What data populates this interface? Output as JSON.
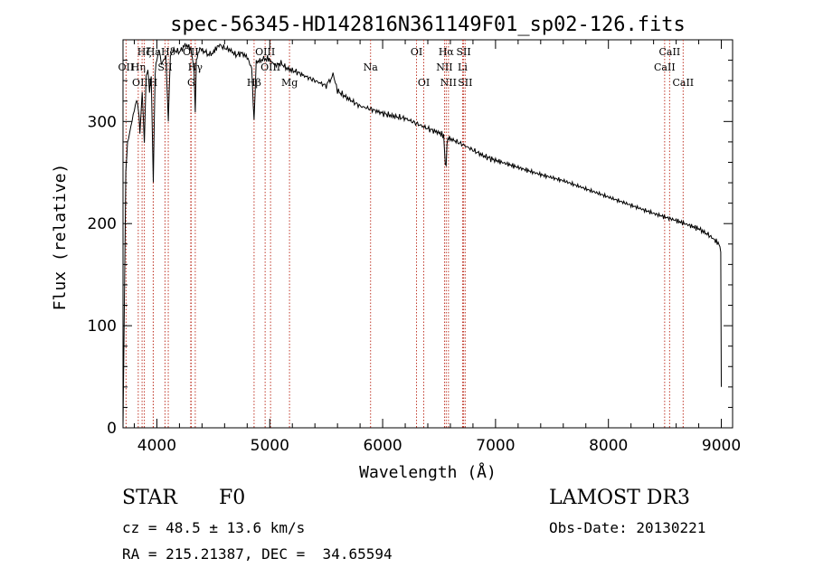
{
  "chart_data": {
    "type": "line",
    "title": "spec-56345-HD142816N361149F01_sp02-126.fits",
    "xlabel": "Wavelength (Å)",
    "ylabel": "Flux (relative)",
    "xlim": [
      3700,
      9100
    ],
    "ylim": [
      0,
      380
    ],
    "x_ticks": [
      4000,
      5000,
      6000,
      7000,
      8000,
      9000
    ],
    "y_ticks": [
      0,
      100,
      200,
      300
    ],
    "grid": false,
    "series": [
      {
        "name": "spectrum",
        "x": [
          3700,
          3712,
          3725,
          3740,
          3760,
          3780,
          3800,
          3820,
          3835,
          3850,
          3870,
          3889,
          3905,
          3920,
          3935,
          3950,
          3968,
          3985,
          4000,
          4020,
          4040,
          4060,
          4080,
          4101,
          4120,
          4150,
          4200,
          4250,
          4300,
          4330,
          4340,
          4350,
          4380,
          4420,
          4480,
          4550,
          4600,
          4650,
          4700,
          4750,
          4800,
          4840,
          4861,
          4880,
          4920,
          4980,
          5050,
          5100,
          5150,
          5200,
          5250,
          5300,
          5400,
          5500,
          5560,
          5580,
          5600,
          5700,
          5800,
          5900,
          6000,
          6100,
          6200,
          6300,
          6400,
          6500,
          6540,
          6555,
          6563,
          6570,
          6585,
          6600,
          6700,
          6800,
          6900,
          7000,
          7200,
          7400,
          7600,
          7800,
          8000,
          8200,
          8400,
          8600,
          8800,
          8900,
          8980,
          8995,
          9000
        ],
        "values": [
          0,
          120,
          250,
          280,
          290,
          300,
          310,
          320,
          315,
          290,
          330,
          280,
          345,
          350,
          330,
          345,
          240,
          350,
          360,
          370,
          355,
          360,
          365,
          300,
          365,
          370,
          368,
          375,
          372,
          350,
          310,
          360,
          372,
          368,
          365,
          375,
          372,
          370,
          365,
          367,
          363,
          352,
          300,
          358,
          360,
          362,
          355,
          357,
          352,
          350,
          348,
          345,
          340,
          335,
          345,
          338,
          330,
          322,
          315,
          312,
          308,
          305,
          303,
          298,
          293,
          289,
          286,
          260,
          255,
          280,
          284,
          283,
          278,
          272,
          266,
          262,
          255,
          248,
          242,
          234,
          226,
          218,
          210,
          203,
          195,
          188,
          180,
          172,
          40
        ]
      }
    ],
    "lines": [
      {
        "label": "Hζ",
        "x": 3889,
        "row": 0
      },
      {
        "label": "Hε",
        "x": 3968,
        "row": 0
      },
      {
        "label": "Hδ",
        "x": 4101,
        "row": 0
      },
      {
        "label": "OII",
        "x": 4300,
        "row": 0
      },
      {
        "label": "OIII",
        "x": 4959,
        "row": 0
      },
      {
        "label": "OI",
        "x": 6300,
        "row": 0
      },
      {
        "label": "Hα",
        "x": 6563,
        "row": 0
      },
      {
        "label": "SII",
        "x": 6717,
        "row": 0
      },
      {
        "label": "CaII",
        "x": 8542,
        "row": 0
      },
      {
        "label": "OII",
        "x": 3727,
        "row": 1
      },
      {
        "label": "Hη",
        "x": 3835,
        "row": 1
      },
      {
        "label": "SII",
        "x": 4072,
        "row": 1
      },
      {
        "label": "Hγ",
        "x": 4340,
        "row": 1
      },
      {
        "label": "OIII",
        "x": 5007,
        "row": 1
      },
      {
        "label": "Na",
        "x": 5893,
        "row": 1
      },
      {
        "label": "NII",
        "x": 6548,
        "row": 1
      },
      {
        "label": "Li",
        "x": 6708,
        "row": 1
      },
      {
        "label": "CaII",
        "x": 8498,
        "row": 1
      },
      {
        "label": "OIII",
        "x": 3869,
        "row": 2
      },
      {
        "label": "H",
        "x": 3968,
        "row": 2
      },
      {
        "label": "G",
        "x": 4304,
        "row": 2
      },
      {
        "label": "Hβ",
        "x": 4861,
        "row": 2
      },
      {
        "label": "Mg",
        "x": 5175,
        "row": 2
      },
      {
        "label": "OI",
        "x": 6364,
        "row": 2
      },
      {
        "label": "NII",
        "x": 6583,
        "row": 2
      },
      {
        "label": "SII",
        "x": 6731,
        "row": 2
      },
      {
        "label": "CaII",
        "x": 8662,
        "row": 2
      }
    ]
  },
  "info": {
    "object_class": "STAR",
    "subclass": "F0",
    "survey": "LAMOST DR3",
    "velocity": "cz = 48.5 ± 13.6 km/s",
    "obs_date": "Obs-Date: 20130221",
    "coords": "RA = 215.21387, DEC =  34.65594"
  }
}
